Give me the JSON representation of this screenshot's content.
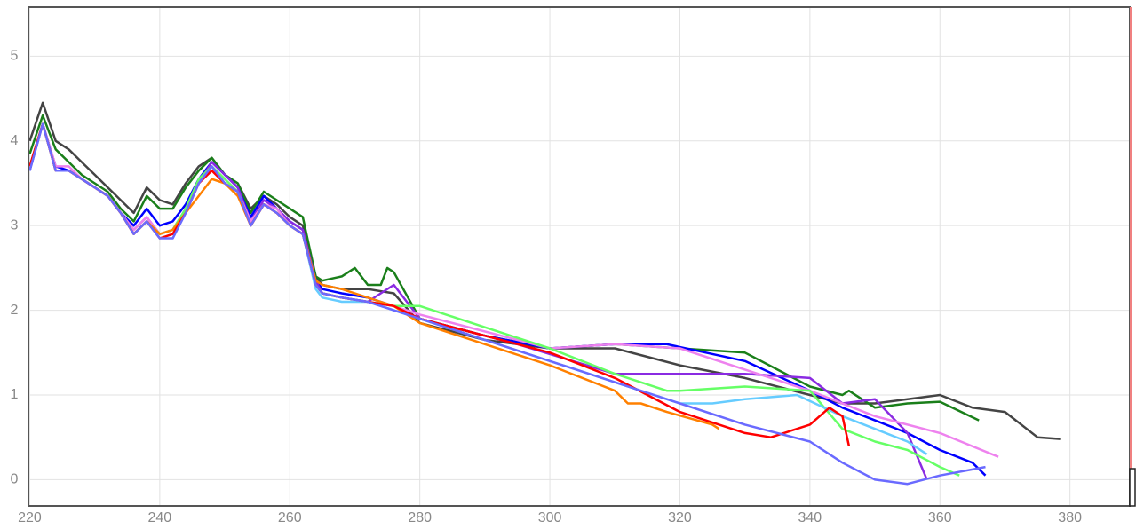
{
  "chart_data": {
    "type": "line",
    "xlim": [
      219.8,
      389.2
    ],
    "ylim": [
      -0.31,
      5.58
    ],
    "xticks": [
      220,
      240,
      260,
      280,
      300,
      320,
      340,
      360,
      380
    ],
    "yticks": [
      0,
      1,
      2,
      3,
      4,
      5
    ],
    "grid": true,
    "series": [
      {
        "color": "#444444",
        "x": [
          220,
          222,
          224,
          226,
          228,
          230,
          232,
          234,
          236,
          238,
          240,
          242,
          244,
          246,
          248,
          250,
          252,
          254,
          256,
          258,
          260,
          262,
          264,
          265,
          268,
          272,
          276,
          280,
          290,
          300,
          310,
          320,
          330,
          340,
          345,
          350,
          355,
          360,
          365,
          370,
          375,
          378.5
        ],
        "values": [
          4.0,
          4.45,
          4.0,
          3.9,
          3.75,
          3.6,
          3.45,
          3.3,
          3.15,
          3.45,
          3.3,
          3.25,
          3.5,
          3.7,
          3.8,
          3.6,
          3.5,
          3.2,
          3.35,
          3.25,
          3.1,
          3.0,
          2.4,
          2.3,
          2.25,
          2.25,
          2.2,
          1.85,
          1.65,
          1.55,
          1.55,
          1.35,
          1.2,
          1.0,
          0.9,
          0.9,
          0.95,
          1.0,
          0.85,
          0.8,
          0.5,
          0.48
        ]
      },
      {
        "color": "#1a7f1a",
        "x": [
          220,
          222,
          224,
          226,
          228,
          230,
          232,
          234,
          236,
          238,
          240,
          242,
          244,
          246,
          248,
          250,
          252,
          254,
          256,
          258,
          260,
          262,
          264,
          265,
          268,
          270,
          272,
          274,
          275,
          276,
          280,
          290,
          300,
          310,
          320,
          330,
          340,
          345,
          346,
          350,
          355,
          360,
          366
        ],
        "values": [
          3.85,
          4.3,
          3.9,
          3.75,
          3.6,
          3.5,
          3.4,
          3.2,
          3.05,
          3.35,
          3.2,
          3.2,
          3.45,
          3.65,
          3.8,
          3.6,
          3.5,
          3.15,
          3.4,
          3.3,
          3.2,
          3.1,
          2.4,
          2.35,
          2.4,
          2.5,
          2.3,
          2.3,
          2.5,
          2.45,
          1.9,
          1.7,
          1.55,
          1.6,
          1.55,
          1.5,
          1.1,
          1.0,
          1.05,
          0.85,
          0.9,
          0.92,
          0.7
        ]
      },
      {
        "color": "#0000ff",
        "x": [
          220,
          222,
          224,
          226,
          228,
          230,
          232,
          234,
          236,
          238,
          240,
          242,
          244,
          246,
          248,
          250,
          252,
          254,
          256,
          258,
          260,
          262,
          264,
          265,
          268,
          272,
          276,
          280,
          290,
          300,
          310,
          318,
          330,
          340,
          345,
          350,
          355,
          360,
          365,
          367
        ],
        "values": [
          3.65,
          4.2,
          3.7,
          3.65,
          3.55,
          3.45,
          3.35,
          3.15,
          3.0,
          3.2,
          3.0,
          3.05,
          3.25,
          3.55,
          3.75,
          3.6,
          3.45,
          3.1,
          3.35,
          3.2,
          3.05,
          2.95,
          2.35,
          2.25,
          2.2,
          2.15,
          2.05,
          1.9,
          1.7,
          1.55,
          1.6,
          1.6,
          1.4,
          1.05,
          0.85,
          0.7,
          0.55,
          0.35,
          0.2,
          0.05
        ]
      },
      {
        "color": "#8a2be2",
        "x": [
          220,
          222,
          224,
          226,
          228,
          230,
          232,
          234,
          236,
          238,
          240,
          242,
          244,
          246,
          248,
          250,
          252,
          254,
          256,
          258,
          260,
          262,
          264,
          265,
          268,
          272,
          276,
          280,
          295,
          310,
          320,
          330,
          340,
          345,
          350,
          355,
          358
        ],
        "values": [
          3.7,
          4.2,
          3.65,
          3.65,
          3.55,
          3.45,
          3.35,
          3.15,
          2.95,
          3.1,
          2.9,
          2.95,
          3.2,
          3.5,
          3.75,
          3.6,
          3.45,
          3.05,
          3.3,
          3.2,
          3.05,
          2.95,
          2.35,
          2.2,
          2.15,
          2.1,
          2.3,
          1.9,
          1.6,
          1.25,
          1.25,
          1.25,
          1.2,
          0.9,
          0.95,
          0.55,
          0.0
        ]
      },
      {
        "color": "#ee82ee",
        "x": [
          220,
          222,
          224,
          226,
          228,
          230,
          232,
          234,
          236,
          238,
          240,
          242,
          244,
          246,
          248,
          250,
          252,
          254,
          256,
          258,
          260,
          262,
          264,
          265,
          268,
          272,
          276,
          280,
          300,
          310,
          320,
          330,
          340,
          350,
          360,
          369
        ],
        "values": [
          3.7,
          4.2,
          3.7,
          3.7,
          3.55,
          3.45,
          3.35,
          3.15,
          2.95,
          3.1,
          2.9,
          2.95,
          3.2,
          3.5,
          3.7,
          3.55,
          3.4,
          3.05,
          3.25,
          3.2,
          3.0,
          2.9,
          2.3,
          2.2,
          2.15,
          2.1,
          2.05,
          1.95,
          1.55,
          1.6,
          1.55,
          1.3,
          1.05,
          0.75,
          0.55,
          0.27
        ]
      },
      {
        "color": "#66ff66",
        "x": [
          220,
          222,
          224,
          226,
          228,
          230,
          232,
          234,
          236,
          238,
          240,
          242,
          244,
          246,
          248,
          250,
          252,
          254,
          256,
          258,
          260,
          262,
          264,
          265,
          268,
          272,
          276,
          280,
          290,
          300,
          310,
          318,
          320,
          330,
          340,
          345,
          350,
          355,
          360,
          363
        ],
        "values": [
          3.7,
          4.2,
          3.65,
          3.65,
          3.55,
          3.45,
          3.35,
          3.15,
          2.9,
          3.05,
          2.9,
          2.95,
          3.2,
          3.55,
          3.7,
          3.55,
          3.4,
          3.0,
          3.25,
          3.15,
          3.0,
          2.9,
          2.3,
          2.2,
          2.15,
          2.1,
          2.05,
          2.05,
          1.8,
          1.55,
          1.25,
          1.05,
          1.05,
          1.1,
          1.05,
          0.6,
          0.45,
          0.35,
          0.15,
          0.05
        ]
      },
      {
        "color": "#66ccff",
        "x": [
          220,
          222,
          224,
          226,
          228,
          230,
          232,
          234,
          236,
          238,
          240,
          242,
          244,
          246,
          248,
          250,
          252,
          254,
          256,
          258,
          260,
          262,
          264,
          265,
          268,
          272,
          276,
          280,
          300,
          310,
          320,
          325,
          330,
          338,
          345,
          350,
          355,
          358
        ],
        "values": [
          3.7,
          4.2,
          3.65,
          3.65,
          3.55,
          3.45,
          3.35,
          3.15,
          2.9,
          3.05,
          2.85,
          2.9,
          3.15,
          3.5,
          3.7,
          3.5,
          3.4,
          3.0,
          3.25,
          3.15,
          3.0,
          2.9,
          2.25,
          2.15,
          2.1,
          2.1,
          2.0,
          1.9,
          1.4,
          1.15,
          0.9,
          0.9,
          0.95,
          1.0,
          0.75,
          0.6,
          0.45,
          0.3
        ]
      },
      {
        "color": "#ff8000",
        "x": [
          220,
          222,
          224,
          226,
          228,
          230,
          232,
          234,
          236,
          238,
          240,
          242,
          244,
          246,
          248,
          250,
          252,
          254,
          256,
          258,
          260,
          262,
          264,
          265,
          268,
          272,
          276,
          280,
          290,
          300,
          310,
          312,
          314,
          318,
          325,
          326
        ],
        "values": [
          3.7,
          4.2,
          3.65,
          3.65,
          3.55,
          3.45,
          3.35,
          3.15,
          2.9,
          3.05,
          2.9,
          2.95,
          3.15,
          3.35,
          3.55,
          3.5,
          3.35,
          3.0,
          3.25,
          3.15,
          3.0,
          2.9,
          2.35,
          2.3,
          2.25,
          2.15,
          2.05,
          1.85,
          1.6,
          1.35,
          1.05,
          0.9,
          0.9,
          0.8,
          0.65,
          0.6
        ]
      },
      {
        "color": "#ff0000",
        "x": [
          220,
          222,
          224,
          226,
          228,
          230,
          232,
          234,
          236,
          238,
          240,
          242,
          244,
          246,
          248,
          250,
          252,
          254,
          256,
          258,
          260,
          262,
          264,
          265,
          268,
          272,
          276,
          280,
          300,
          310,
          320,
          330,
          334,
          340,
          343,
          345,
          346
        ],
        "values": [
          3.7,
          4.2,
          3.65,
          3.65,
          3.55,
          3.45,
          3.35,
          3.15,
          2.9,
          3.05,
          2.85,
          2.9,
          3.15,
          3.5,
          3.65,
          3.5,
          3.4,
          3.0,
          3.25,
          3.15,
          3.0,
          2.9,
          2.3,
          2.2,
          2.15,
          2.1,
          2.05,
          1.9,
          1.5,
          1.2,
          0.8,
          0.55,
          0.5,
          0.65,
          0.85,
          0.75,
          0.4
        ]
      },
      {
        "color": "#6a6aff",
        "x": [
          220,
          222,
          224,
          226,
          228,
          230,
          232,
          234,
          236,
          238,
          240,
          242,
          244,
          246,
          248,
          250,
          252,
          254,
          256,
          258,
          260,
          262,
          264,
          265,
          268,
          272,
          276,
          280,
          300,
          320,
          330,
          340,
          345,
          350,
          355,
          360,
          367
        ],
        "values": [
          3.65,
          4.2,
          3.65,
          3.65,
          3.55,
          3.45,
          3.35,
          3.15,
          2.9,
          3.05,
          2.85,
          2.85,
          3.15,
          3.5,
          3.7,
          3.5,
          3.4,
          3.0,
          3.25,
          3.15,
          3.0,
          2.9,
          2.3,
          2.2,
          2.15,
          2.1,
          2.0,
          1.9,
          1.4,
          0.9,
          0.65,
          0.45,
          0.2,
          0.0,
          -0.05,
          0.05,
          0.15
        ]
      }
    ]
  }
}
